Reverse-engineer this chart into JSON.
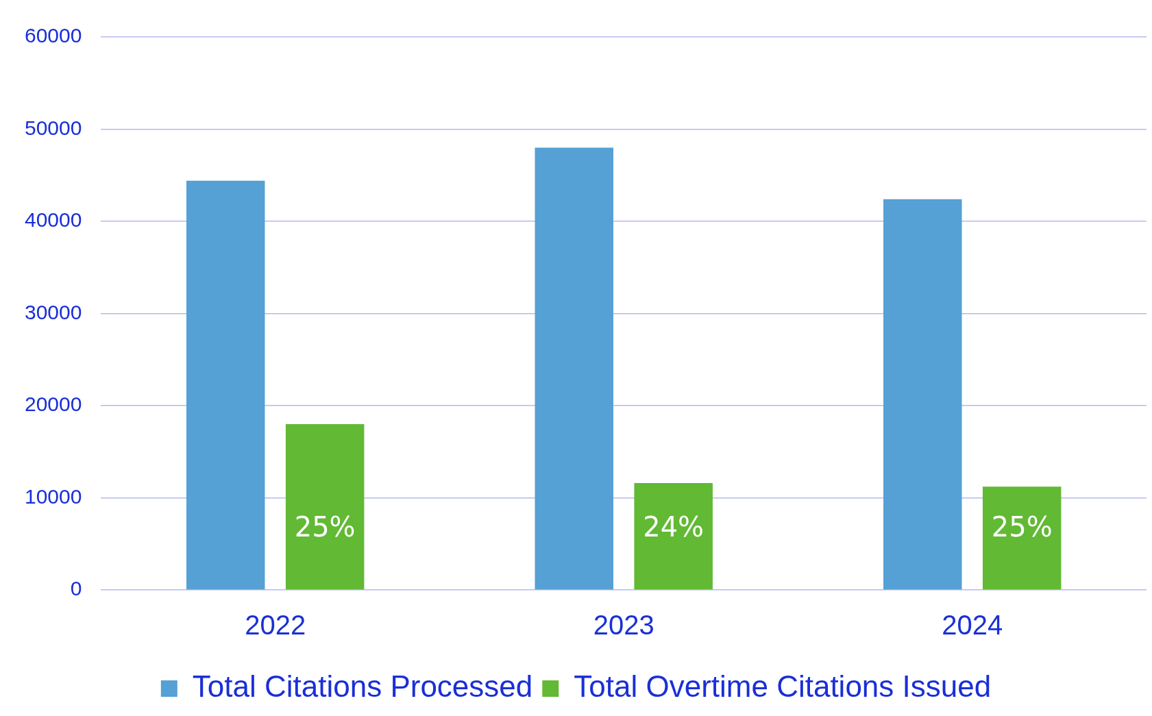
{
  "chart_data": {
    "type": "bar",
    "categories": [
      "2022",
      "2023",
      "2024"
    ],
    "series": [
      {
        "name": "Total Citations Processed",
        "color": "#55a0d4",
        "values": [
          44400,
          48000,
          42400
        ]
      },
      {
        "name": "Total Overtime Citations Issued",
        "color": "#62b934",
        "values": [
          18000,
          11600,
          11200
        ]
      }
    ],
    "annotations": [
      "25%",
      "24%",
      "25%"
    ],
    "ylim": [
      0,
      60000
    ],
    "yticks": [
      0,
      10000,
      20000,
      30000,
      40000,
      50000,
      60000
    ],
    "grid": "y",
    "legend": "bottom"
  }
}
